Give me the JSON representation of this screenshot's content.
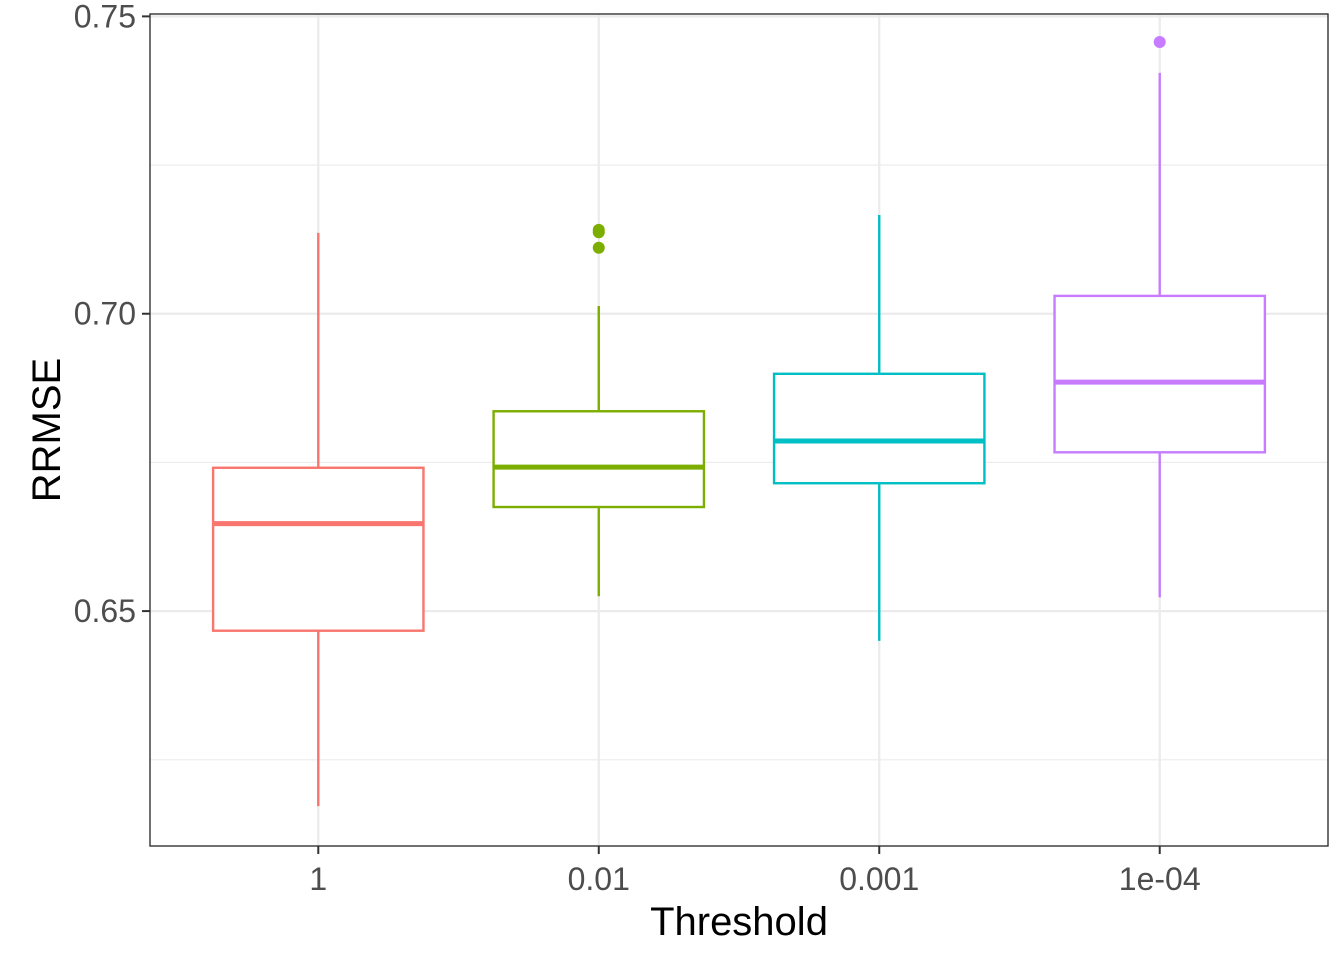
{
  "chart_data": {
    "type": "boxplot",
    "title": "",
    "xlabel": "Threshold",
    "ylabel": "RRMSE",
    "categories": [
      "1",
      "0.01",
      "0.001",
      "1e-04"
    ],
    "colors": [
      "#F8766D",
      "#7CAE00",
      "#00BFC4",
      "#C77CFF"
    ],
    "ylim": [
      0.6105,
      0.7504
    ],
    "yticks": [
      {
        "value": 0.65,
        "label": "0.65"
      },
      {
        "value": 0.7,
        "label": "0.70"
      },
      {
        "value": 0.75,
        "label": "0.75"
      }
    ],
    "yminor": [
      0.625,
      0.675,
      0.725
    ],
    "grid": true,
    "legend": "none",
    "boxes": [
      {
        "category": "1",
        "whisker_low": 0.6172,
        "q1": 0.6467,
        "median": 0.6647,
        "q3": 0.6741,
        "whisker_high": 0.7136,
        "outliers": []
      },
      {
        "category": "0.01",
        "whisker_low": 0.6525,
        "q1": 0.6675,
        "median": 0.6742,
        "q3": 0.6836,
        "whisker_high": 0.7013,
        "outliers": [
          0.7141,
          0.7137,
          0.7111
        ]
      },
      {
        "category": "0.001",
        "whisker_low": 0.645,
        "q1": 0.6715,
        "median": 0.6786,
        "q3": 0.6899,
        "whisker_high": 0.7166,
        "outliers": []
      },
      {
        "category": "1e-04",
        "whisker_low": 0.6523,
        "q1": 0.6767,
        "median": 0.6885,
        "q3": 0.703,
        "whisker_high": 0.7405,
        "outliers": [
          0.7457
        ]
      }
    ]
  }
}
